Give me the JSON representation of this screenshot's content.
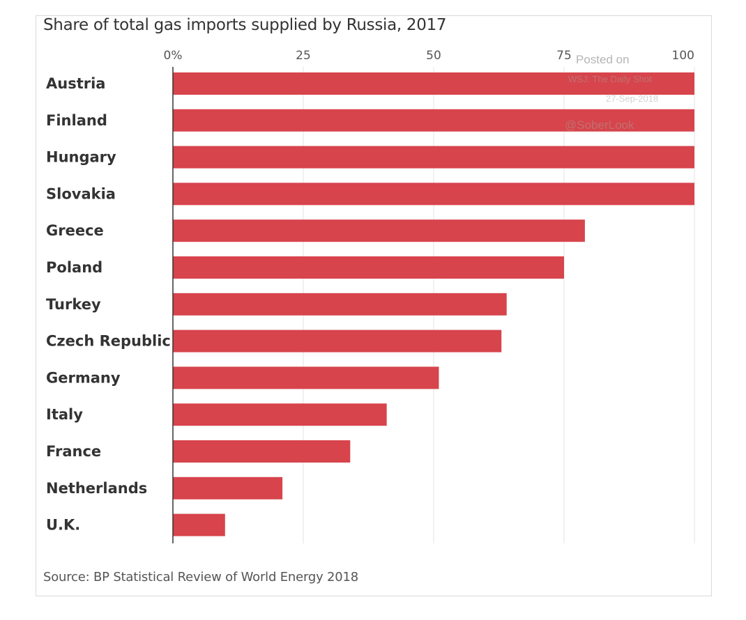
{
  "title": "Share of total gas imports supplied by Russia, 2017",
  "source": "Source: BP Statistical Review of World Energy 2018",
  "watermark": {
    "line1": "Posted on",
    "line2": "WSJ: The Daily Shot",
    "line3": "27-Sep-2018",
    "line4": "@SoberLook"
  },
  "colors": {
    "bar": "#d7444c",
    "grid": "#e3e3e3",
    "axis": "#333333",
    "tick_text": "#555555",
    "label_text": "#333333"
  },
  "chart_data": {
    "type": "bar",
    "orientation": "horizontal",
    "title": "Share of total gas imports supplied by Russia, 2017",
    "xlim": [
      0,
      100
    ],
    "xticks": [
      0,
      25,
      50,
      75,
      100
    ],
    "xtick_labels": [
      "0%",
      "25",
      "50",
      "75",
      "100"
    ],
    "grid": true,
    "categories": [
      "Austria",
      "Finland",
      "Hungary",
      "Slovakia",
      "Greece",
      "Poland",
      "Turkey",
      "Czech Republic",
      "Germany",
      "Italy",
      "France",
      "Netherlands",
      "U.K."
    ],
    "values": [
      100,
      100,
      100,
      100,
      79,
      75,
      64,
      63,
      51,
      41,
      34,
      21,
      10
    ]
  }
}
